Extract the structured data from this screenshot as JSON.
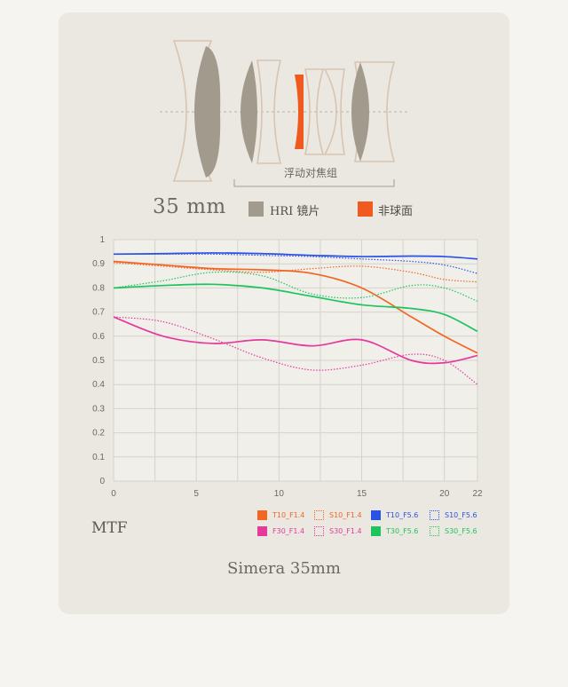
{
  "header": {
    "focal_length": "35 mm",
    "floating_group_label": "浮动对焦组",
    "legend_hri": "HRI 镜片",
    "legend_asph": "非球面",
    "colors": {
      "hri": "#a39a8e",
      "asph": "#f15a1e",
      "outline": "#d8c4b0"
    }
  },
  "chart_label": "MTF",
  "caption": "Simera 35mm",
  "chart_data": {
    "type": "line",
    "title": "",
    "xlabel": "",
    "ylabel": "",
    "xlim": [
      0,
      22
    ],
    "ylim": [
      0,
      1
    ],
    "x_ticks": [
      "0",
      "5",
      "10",
      "15",
      "20",
      "22"
    ],
    "y_ticks": [
      "0",
      "0.1",
      "0.2",
      "0.3",
      "0.4",
      "0.5",
      "0.6",
      "0.7",
      "0.8",
      "0.9",
      "1"
    ],
    "grid": true,
    "legend_position": "bottom-right",
    "series": [
      {
        "name": "T10_F1.4",
        "color": "#f26522",
        "style": "solid",
        "x": [
          0,
          3,
          6,
          9,
          12,
          15,
          18,
          20,
          22
        ],
        "y": [
          0.91,
          0.895,
          0.88,
          0.875,
          0.86,
          0.8,
          0.68,
          0.6,
          0.53
        ]
      },
      {
        "name": "S10_F1.4",
        "color": "#f26522",
        "style": "dotted",
        "x": [
          0,
          3,
          6,
          9,
          12,
          15,
          18,
          20,
          22
        ],
        "y": [
          0.905,
          0.89,
          0.875,
          0.865,
          0.88,
          0.89,
          0.865,
          0.835,
          0.825
        ]
      },
      {
        "name": "T10_F5.6",
        "color": "#2b52e6",
        "style": "solid",
        "x": [
          0,
          3,
          6,
          9,
          12,
          15,
          18,
          20,
          22
        ],
        "y": [
          0.94,
          0.942,
          0.945,
          0.942,
          0.935,
          0.93,
          0.932,
          0.93,
          0.92
        ]
      },
      {
        "name": "S10_F5.6",
        "color": "#2b52e6",
        "style": "dotted",
        "x": [
          0,
          3,
          6,
          9,
          12,
          15,
          18,
          20,
          22
        ],
        "y": [
          0.94,
          0.94,
          0.94,
          0.935,
          0.93,
          0.92,
          0.91,
          0.895,
          0.86
        ]
      },
      {
        "name": "F30_F1.4",
        "color": "#e5399c",
        "style": "solid",
        "x": [
          0,
          3,
          6,
          9,
          12,
          15,
          18,
          20,
          22
        ],
        "y": [
          0.68,
          0.6,
          0.57,
          0.585,
          0.56,
          0.585,
          0.5,
          0.49,
          0.52
        ]
      },
      {
        "name": "S30_F1.4",
        "color": "#e5399c",
        "style": "dotted",
        "x": [
          0,
          3,
          6,
          9,
          12,
          15,
          18,
          20,
          22
        ],
        "y": [
          0.68,
          0.66,
          0.59,
          0.51,
          0.46,
          0.48,
          0.525,
          0.5,
          0.4
        ]
      },
      {
        "name": "T30_F5.6",
        "color": "#1cc45d",
        "style": "solid",
        "x": [
          0,
          3,
          6,
          9,
          12,
          15,
          18,
          20,
          22
        ],
        "y": [
          0.8,
          0.81,
          0.815,
          0.8,
          0.765,
          0.73,
          0.715,
          0.69,
          0.62
        ]
      },
      {
        "name": "S30_F5.6",
        "color": "#1cc45d",
        "style": "dotted",
        "x": [
          0,
          3,
          6,
          9,
          12,
          15,
          18,
          20,
          22
        ],
        "y": [
          0.8,
          0.83,
          0.865,
          0.85,
          0.775,
          0.76,
          0.81,
          0.8,
          0.745
        ]
      }
    ]
  }
}
